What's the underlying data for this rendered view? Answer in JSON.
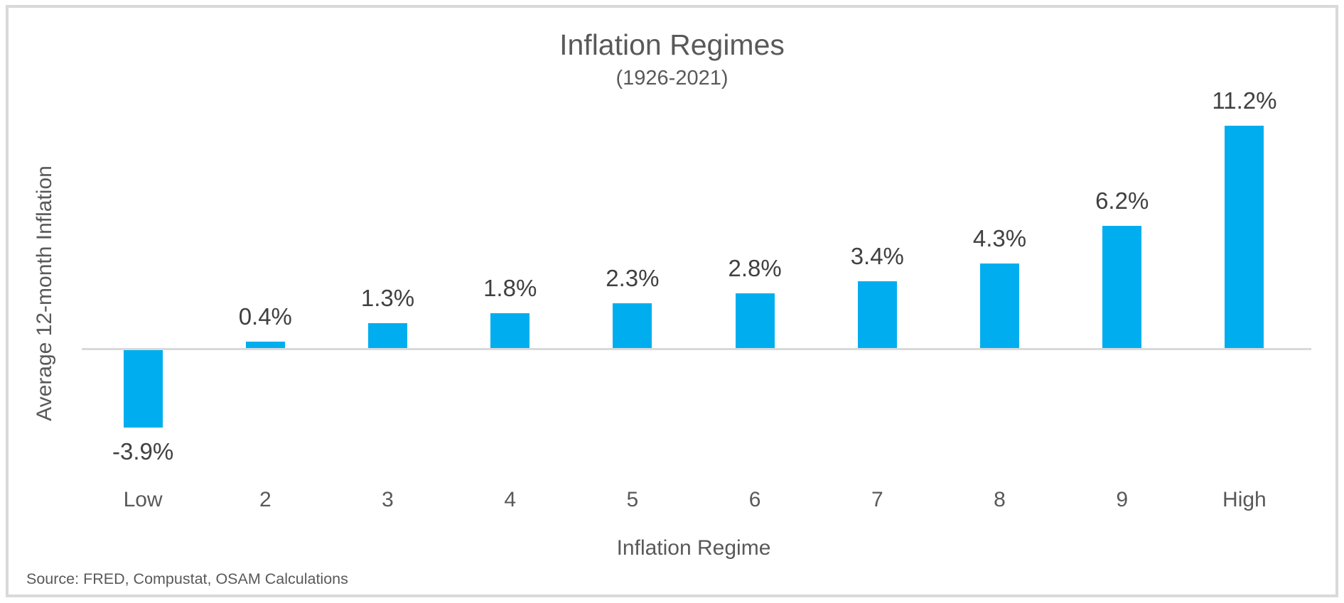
{
  "chart": {
    "title": "Inflation Regimes",
    "subtitle": "(1926-2021)",
    "y_axis_title": "Average 12-month Inflation",
    "x_axis_title": "Inflation Regime",
    "source": "Source: FRED, Compustat, OSAM Calculations"
  },
  "colors": {
    "bar": "#00AEEF",
    "axis_line": "#D9D9D9",
    "frame_border": "#D9D9D9",
    "title_text": "#595959",
    "data_label_text": "#404040"
  },
  "chart_data": {
    "type": "bar",
    "title": "Inflation Regimes",
    "subtitle": "(1926-2021)",
    "categories": [
      "Low",
      "2",
      "3",
      "4",
      "5",
      "6",
      "7",
      "8",
      "9",
      "High"
    ],
    "values": [
      -3.9,
      0.4,
      1.3,
      1.8,
      2.3,
      2.8,
      3.4,
      4.3,
      6.2,
      11.2
    ],
    "data_labels": [
      "-3.9%",
      "0.4%",
      "1.3%",
      "1.8%",
      "2.3%",
      "2.8%",
      "3.4%",
      "4.3%",
      "6.2%",
      "11.2%"
    ],
    "xlabel": "Inflation Regime",
    "ylabel": "Average 12-month Inflation",
    "ylim": [
      -5,
      12
    ],
    "grid": false,
    "legend": false,
    "bar_color": "#00AEEF",
    "source": "Source: FRED, Compustat, OSAM Calculations"
  }
}
